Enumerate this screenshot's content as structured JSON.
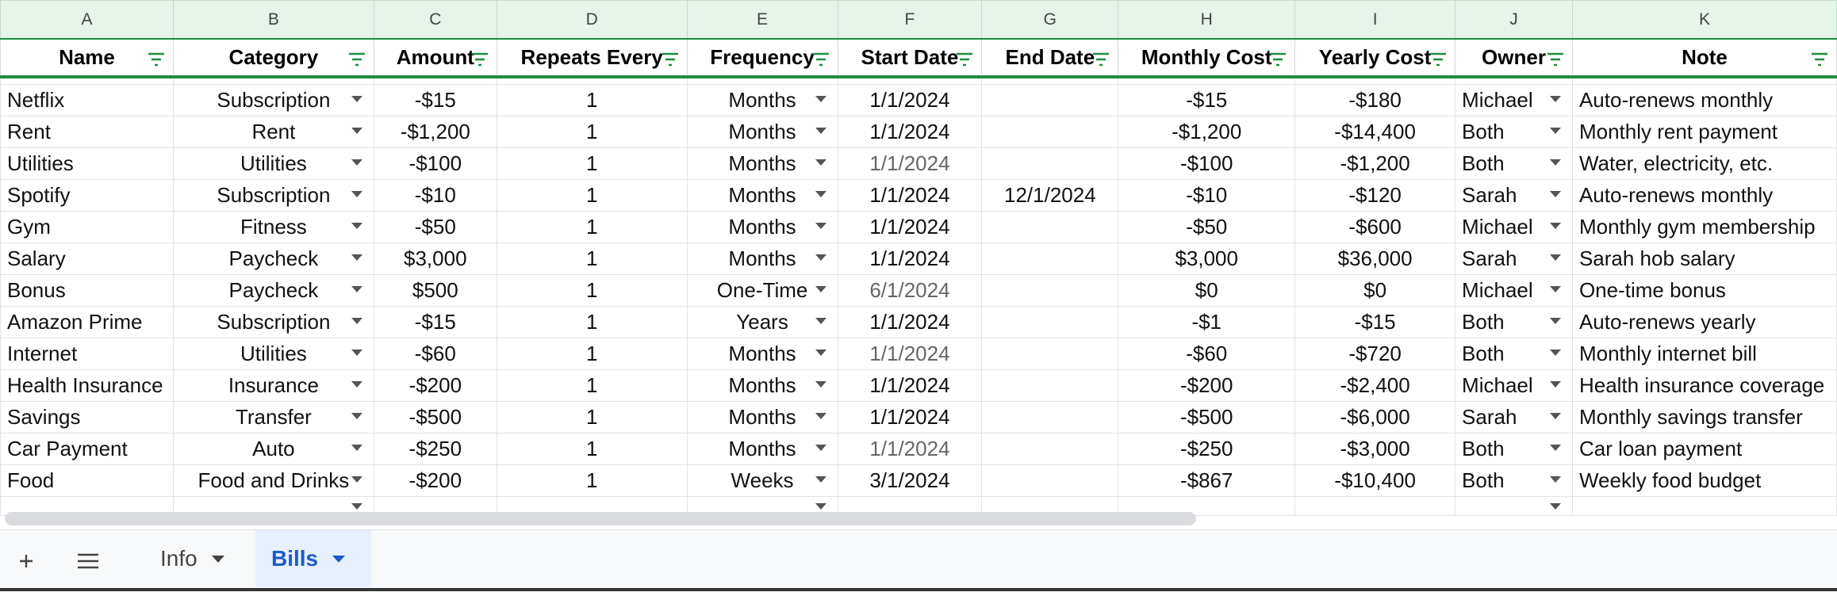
{
  "sheet": {
    "column_letters": [
      "A",
      "B",
      "C",
      "D",
      "E",
      "F",
      "G",
      "H",
      "I",
      "J",
      "K"
    ],
    "headers": [
      "Name",
      "Category",
      "Amount",
      "Repeats Every",
      "Frequency",
      "Start Date",
      "End Date",
      "Monthly Cost",
      "Yearly Cost",
      "Owner",
      "Note"
    ],
    "rows": [
      {
        "name": "Netflix",
        "category": "Subscription",
        "amount": "-$15",
        "repeats": "1",
        "frequency": "Months",
        "start": "1/1/2024",
        "end": "",
        "monthly": "-$15",
        "yearly": "-$180",
        "owner": "Michael",
        "note": "Auto-renews monthly"
      },
      {
        "name": "Rent",
        "category": "Rent",
        "amount": "-$1,200",
        "repeats": "1",
        "frequency": "Months",
        "start": "1/1/2024",
        "end": "",
        "monthly": "-$1,200",
        "yearly": "-$14,400",
        "owner": "Both",
        "note": "Monthly rent payment"
      },
      {
        "name": "Utilities",
        "category": "Utilities",
        "amount": "-$100",
        "repeats": "1",
        "frequency": "Months",
        "start": "1/1/2024",
        "end": "",
        "monthly": "-$100",
        "yearly": "-$1,200",
        "owner": "Both",
        "note": "Water, electricity, etc."
      },
      {
        "name": "Spotify",
        "category": "Subscription",
        "amount": "-$10",
        "repeats": "1",
        "frequency": "Months",
        "start": "1/1/2024",
        "end": "12/1/2024",
        "monthly": "-$10",
        "yearly": "-$120",
        "owner": "Sarah",
        "note": "Auto-renews monthly"
      },
      {
        "name": "Gym",
        "category": "Fitness",
        "amount": "-$50",
        "repeats": "1",
        "frequency": "Months",
        "start": "1/1/2024",
        "end": "",
        "monthly": "-$50",
        "yearly": "-$600",
        "owner": "Michael",
        "note": "Monthly gym membership"
      },
      {
        "name": "Salary",
        "category": "Paycheck",
        "amount": "$3,000",
        "repeats": "1",
        "frequency": "Months",
        "start": "1/1/2024",
        "end": "",
        "monthly": "$3,000",
        "yearly": "$36,000",
        "owner": "Sarah",
        "note": "Sarah hob salary"
      },
      {
        "name": "Bonus",
        "category": "Paycheck",
        "amount": "$500",
        "repeats": "1",
        "frequency": "One-Time",
        "start": "6/1/2024",
        "end": "",
        "monthly": "$0",
        "yearly": "$0",
        "owner": "Michael",
        "note": "One-time bonus"
      },
      {
        "name": "Amazon Prime",
        "category": "Subscription",
        "amount": "-$15",
        "repeats": "1",
        "frequency": "Years",
        "start": "1/1/2024",
        "end": "",
        "monthly": "-$1",
        "yearly": "-$15",
        "owner": "Both",
        "note": "Auto-renews yearly"
      },
      {
        "name": "Internet",
        "category": "Utilities",
        "amount": "-$60",
        "repeats": "1",
        "frequency": "Months",
        "start": "1/1/2024",
        "end": "",
        "monthly": "-$60",
        "yearly": "-$720",
        "owner": "Both",
        "note": "Monthly internet bill"
      },
      {
        "name": "Health Insurance",
        "category": "Insurance",
        "amount": "-$200",
        "repeats": "1",
        "frequency": "Months",
        "start": "1/1/2024",
        "end": "",
        "monthly": "-$200",
        "yearly": "-$2,400",
        "owner": "Michael",
        "note": "Health insurance coverage"
      },
      {
        "name": "Savings",
        "category": "Transfer",
        "amount": "-$500",
        "repeats": "1",
        "frequency": "Months",
        "start": "1/1/2024",
        "end": "",
        "monthly": "-$500",
        "yearly": "-$6,000",
        "owner": "Sarah",
        "note": "Monthly savings transfer"
      },
      {
        "name": "Car Payment",
        "category": "Auto",
        "amount": "-$250",
        "repeats": "1",
        "frequency": "Months",
        "start": "1/1/2024",
        "end": "",
        "monthly": "-$250",
        "yearly": "-$3,000",
        "owner": "Both",
        "note": "Car loan payment"
      },
      {
        "name": "Food",
        "category": "Food and Drinks",
        "amount": "-$200",
        "repeats": "1",
        "frequency": "Weeks",
        "start": "3/1/2024",
        "end": "",
        "monthly": "-$867",
        "yearly": "-$10,400",
        "owner": "Both",
        "note": "Weekly food budget"
      }
    ]
  },
  "tabs": {
    "add_icon": "plus-icon",
    "menu_icon": "menu-icon",
    "items": [
      {
        "label": "Info",
        "active": false
      },
      {
        "label": "Bills",
        "active": true
      }
    ]
  },
  "colors": {
    "header_green": "#1e8e3e",
    "column_header_bg": "#e6f4ea",
    "active_tab_text": "#1a5cc8",
    "active_tab_bg": "#e8f0fe"
  }
}
